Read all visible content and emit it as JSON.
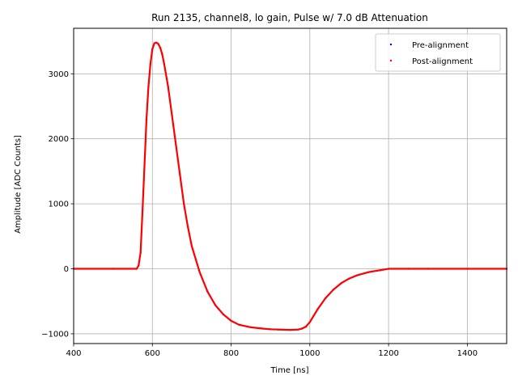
{
  "chart_data": {
    "type": "scatter",
    "title": "Run 2135, channel8, lo gain, Pulse w/ 7.0 dB Attenuation",
    "xlabel": "Time [ns]",
    "ylabel": "Amplitude [ADC Counts]",
    "xlim": [
      400,
      1500
    ],
    "ylim": [
      -1150,
      3700
    ],
    "xticks": [
      400,
      600,
      800,
      1000,
      1200,
      1400
    ],
    "yticks": [
      -1000,
      0,
      1000,
      2000,
      3000
    ],
    "xtick_labels": [
      "400",
      "600",
      "800",
      "1000",
      "1200",
      "1400"
    ],
    "ytick_labels": [
      "−1000",
      "0",
      "1000",
      "2000",
      "3000"
    ],
    "grid": true,
    "legend_position": "top-right",
    "series": [
      {
        "name": "Pre-alignment",
        "color": "#0000ff",
        "x": [
          400,
          500,
          560,
          565,
          570,
          575,
          580,
          585,
          590,
          595,
          600,
          605,
          610,
          615,
          620,
          625,
          630,
          640,
          650,
          660,
          670,
          680,
          690,
          700,
          720,
          740,
          760,
          780,
          800,
          820,
          850,
          880,
          900,
          920,
          950,
          970,
          980,
          990,
          1000,
          1010,
          1020,
          1040,
          1060,
          1080,
          1100,
          1120,
          1150,
          1180,
          1200,
          1250,
          1300,
          1400,
          1500
        ],
        "y": [
          0,
          0,
          0,
          50,
          250,
          900,
          1600,
          2300,
          2800,
          3150,
          3380,
          3470,
          3480,
          3460,
          3400,
          3300,
          3150,
          2800,
          2350,
          1900,
          1450,
          1000,
          650,
          350,
          -50,
          -350,
          -560,
          -700,
          -800,
          -860,
          -900,
          -920,
          -930,
          -935,
          -940,
          -935,
          -920,
          -890,
          -820,
          -720,
          -620,
          -450,
          -320,
          -220,
          -150,
          -100,
          -50,
          -20,
          0,
          0,
          0,
          0,
          0
        ]
      },
      {
        "name": "Post-alignment",
        "color": "#ff0000",
        "x": [
          400,
          500,
          560,
          565,
          570,
          575,
          580,
          585,
          590,
          595,
          600,
          605,
          610,
          615,
          620,
          625,
          630,
          640,
          650,
          660,
          670,
          680,
          690,
          700,
          720,
          740,
          760,
          780,
          800,
          820,
          850,
          880,
          900,
          920,
          950,
          970,
          980,
          990,
          1000,
          1010,
          1020,
          1040,
          1060,
          1080,
          1100,
          1120,
          1150,
          1180,
          1200,
          1250,
          1300,
          1400,
          1500
        ],
        "y": [
          0,
          0,
          0,
          50,
          250,
          900,
          1600,
          2300,
          2800,
          3150,
          3380,
          3470,
          3480,
          3460,
          3400,
          3300,
          3150,
          2800,
          2350,
          1900,
          1450,
          1000,
          650,
          350,
          -50,
          -350,
          -560,
          -700,
          -800,
          -860,
          -900,
          -920,
          -930,
          -935,
          -940,
          -935,
          -920,
          -890,
          -820,
          -720,
          -620,
          -450,
          -320,
          -220,
          -150,
          -100,
          -50,
          -20,
          0,
          0,
          0,
          0,
          0
        ]
      }
    ]
  }
}
